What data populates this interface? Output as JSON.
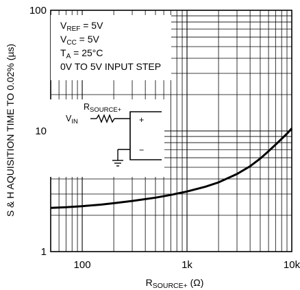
{
  "chart_data": {
    "type": "line",
    "title": "",
    "x_scale": "log",
    "y_scale": "log",
    "xlim": [
      50,
      10000
    ],
    "ylim": [
      1,
      100
    ],
    "grid": true,
    "x_ticks": [
      {
        "value": 100,
        "label": "100"
      },
      {
        "value": 1000,
        "label": "1k"
      },
      {
        "value": 10000,
        "label": "10k"
      }
    ],
    "y_ticks": [
      {
        "value": 1,
        "label": "1"
      },
      {
        "value": 10,
        "label": "10"
      },
      {
        "value": 100,
        "label": "100"
      }
    ],
    "xlabel": {
      "main": "R",
      "sub": "SOURCE+",
      "tail": " (Ω)"
    },
    "ylabel": "S & H AQUISITION TIME TO 0.02% (µs)",
    "conditions": [
      {
        "main": "V",
        "sub": "REF",
        "tail": " = 5V"
      },
      {
        "main": "V",
        "sub": "CC",
        "tail": " = 5V"
      },
      {
        "main": "T",
        "sub": "A",
        "tail": " = 25°C"
      },
      {
        "main": "0V TO 5V INPUT STEP",
        "sub": "",
        "tail": ""
      }
    ],
    "schematic": {
      "vin": {
        "main": "V",
        "sub": "IN"
      },
      "rsource": {
        "main": "R",
        "sub": "SOURCE+"
      },
      "plus": "+",
      "minus": "−"
    },
    "series": [
      {
        "x": [
          50,
          70,
          100,
          150,
          200,
          300,
          500,
          700,
          1000,
          1500,
          2000,
          3000,
          4000,
          5000,
          6000,
          7000,
          8000,
          9000,
          10000
        ],
        "y": [
          2.3,
          2.33,
          2.38,
          2.45,
          2.52,
          2.63,
          2.8,
          2.95,
          3.15,
          3.45,
          3.75,
          4.4,
          5.1,
          5.9,
          6.8,
          7.7,
          8.6,
          9.5,
          10.5
        ]
      }
    ],
    "colors": {
      "line": "#000000",
      "grid": "#000000",
      "background": "#ffffff"
    }
  }
}
